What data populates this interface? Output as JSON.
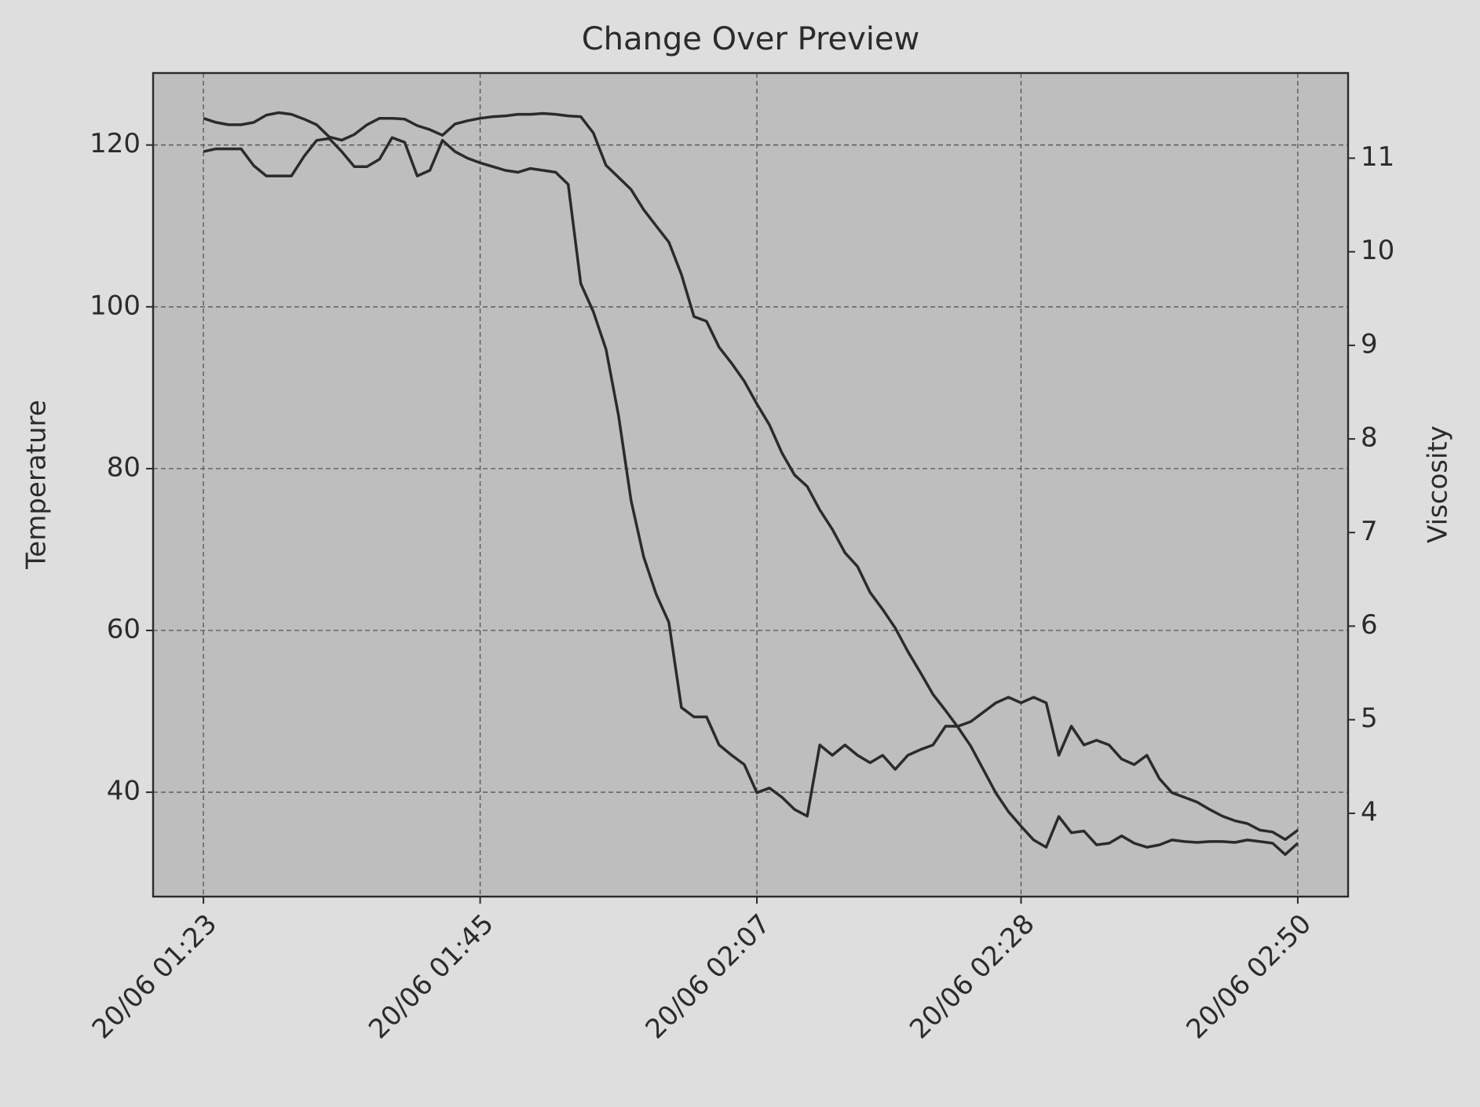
{
  "chart_data": {
    "type": "line",
    "title": "Change Over Preview",
    "y_label": "Temperature",
    "y2_label": "Viscosity",
    "x": [
      "20/06 01:23",
      "20/06 01:24",
      "20/06 01:25",
      "20/06 01:26",
      "20/06 01:27",
      "20/06 01:28",
      "20/06 01:29",
      "20/06 01:30",
      "20/06 01:31",
      "20/06 01:32",
      "20/06 01:33",
      "20/06 01:34",
      "20/06 01:35",
      "20/06 01:36",
      "20/06 01:37",
      "20/06 01:38",
      "20/06 01:39",
      "20/06 01:40",
      "20/06 01:41",
      "20/06 01:42",
      "20/06 01:43",
      "20/06 01:44",
      "20/06 01:45",
      "20/06 01:46",
      "20/06 01:47",
      "20/06 01:48",
      "20/06 01:49",
      "20/06 01:50",
      "20/06 01:51",
      "20/06 01:52",
      "20/06 01:53",
      "20/06 01:54",
      "20/06 01:55",
      "20/06 01:56",
      "20/06 01:57",
      "20/06 01:58",
      "20/06 01:59",
      "20/06 02:00",
      "20/06 02:01",
      "20/06 02:02",
      "20/06 02:03",
      "20/06 02:04",
      "20/06 02:05",
      "20/06 02:06",
      "20/06 02:07",
      "20/06 02:08",
      "20/06 02:09",
      "20/06 02:10",
      "20/06 02:11",
      "20/06 02:12",
      "20/06 02:13",
      "20/06 02:14",
      "20/06 02:15",
      "20/06 02:16",
      "20/06 02:17",
      "20/06 02:18",
      "20/06 02:19",
      "20/06 02:20",
      "20/06 02:21",
      "20/06 02:22",
      "20/06 02:23",
      "20/06 02:24",
      "20/06 02:25",
      "20/06 02:26",
      "20/06 02:27",
      "20/06 02:28",
      "20/06 02:29",
      "20/06 02:30",
      "20/06 02:31",
      "20/06 02:32",
      "20/06 02:33",
      "20/06 02:34",
      "20/06 02:35",
      "20/06 02:36",
      "20/06 02:37",
      "20/06 02:38",
      "20/06 02:39",
      "20/06 02:40",
      "20/06 02:41",
      "20/06 02:42",
      "20/06 02:43",
      "20/06 02:44",
      "20/06 02:45",
      "20/06 02:46",
      "20/06 02:47",
      "20/06 02:48",
      "20/06 02:49",
      "20/06 02:50"
    ],
    "series": [
      {
        "color": "#2b2b2b",
        "values": [
          123.3,
          122.8,
          122.5,
          122.5,
          122.8,
          123.7,
          124.0,
          123.8,
          123.2,
          122.5,
          121.0,
          120.6,
          121.3,
          122.5,
          123.3,
          123.3,
          123.2,
          122.4,
          121.9,
          121.2,
          122.6,
          123.0,
          123.3,
          123.5,
          123.6,
          123.8,
          123.8,
          123.9,
          123.8,
          123.6,
          123.5,
          121.5,
          117.5,
          116.0,
          114.5,
          112.0,
          110.0,
          108.0,
          104.0,
          98.8,
          98.2,
          95.0,
          93.0,
          90.8,
          88.0,
          85.4,
          81.9,
          79.2,
          77.8,
          74.9,
          72.5,
          69.6,
          67.9,
          64.7,
          62.6,
          60.3,
          57.4,
          54.8,
          52.1,
          50.1,
          48.0,
          45.7,
          42.8,
          39.9,
          37.6,
          35.8,
          34.1,
          33.2,
          37.0,
          35.0,
          35.2,
          33.5,
          33.7,
          34.6,
          33.7,
          33.2,
          33.5,
          34.1,
          33.9,
          33.8,
          33.9,
          33.9,
          33.8,
          34.1,
          33.9,
          33.7,
          32.3,
          33.7
        ]
      },
      {
        "color": "#2b2b2b",
        "axis": "y2",
        "values": [
          11.07,
          11.1,
          11.1,
          11.1,
          10.92,
          10.81,
          10.81,
          10.81,
          11.02,
          11.19,
          11.21,
          11.07,
          10.91,
          10.91,
          10.99,
          11.22,
          11.17,
          10.81,
          10.87,
          11.19,
          11.07,
          11.0,
          10.95,
          10.91,
          10.87,
          10.85,
          10.89,
          10.87,
          10.85,
          10.72,
          9.66,
          9.36,
          8.96,
          8.25,
          7.34,
          6.74,
          6.34,
          6.04,
          5.13,
          5.03,
          5.03,
          4.73,
          4.62,
          4.52,
          4.22,
          4.27,
          4.17,
          4.04,
          3.97,
          4.73,
          4.62,
          4.73,
          4.62,
          4.54,
          4.62,
          4.47,
          4.62,
          4.68,
          4.73,
          4.93,
          4.93,
          4.98,
          5.08,
          5.18,
          5.24,
          5.18,
          5.24,
          5.18,
          4.62,
          4.93,
          4.73,
          4.78,
          4.73,
          4.58,
          4.52,
          4.62,
          4.37,
          4.22,
          4.17,
          4.12,
          4.04,
          3.97,
          3.92,
          3.89,
          3.82,
          3.8,
          3.72,
          3.82
        ]
      }
    ],
    "xlim": [
      "20/06 01:19",
      "20/06 02:54"
    ],
    "xticks": [
      "20/06 01:23",
      "20/06 01:45",
      "20/06 02:07",
      "20/06 02:28",
      "20/06 02:50"
    ],
    "ylim": [
      27.1,
      128.9
    ],
    "yticks": [
      40,
      60,
      80,
      100,
      120
    ],
    "y2lim": [
      3.11,
      11.91
    ],
    "y2ticks": [
      4,
      5,
      6,
      7,
      8,
      9,
      10,
      11
    ],
    "grid": true
  }
}
